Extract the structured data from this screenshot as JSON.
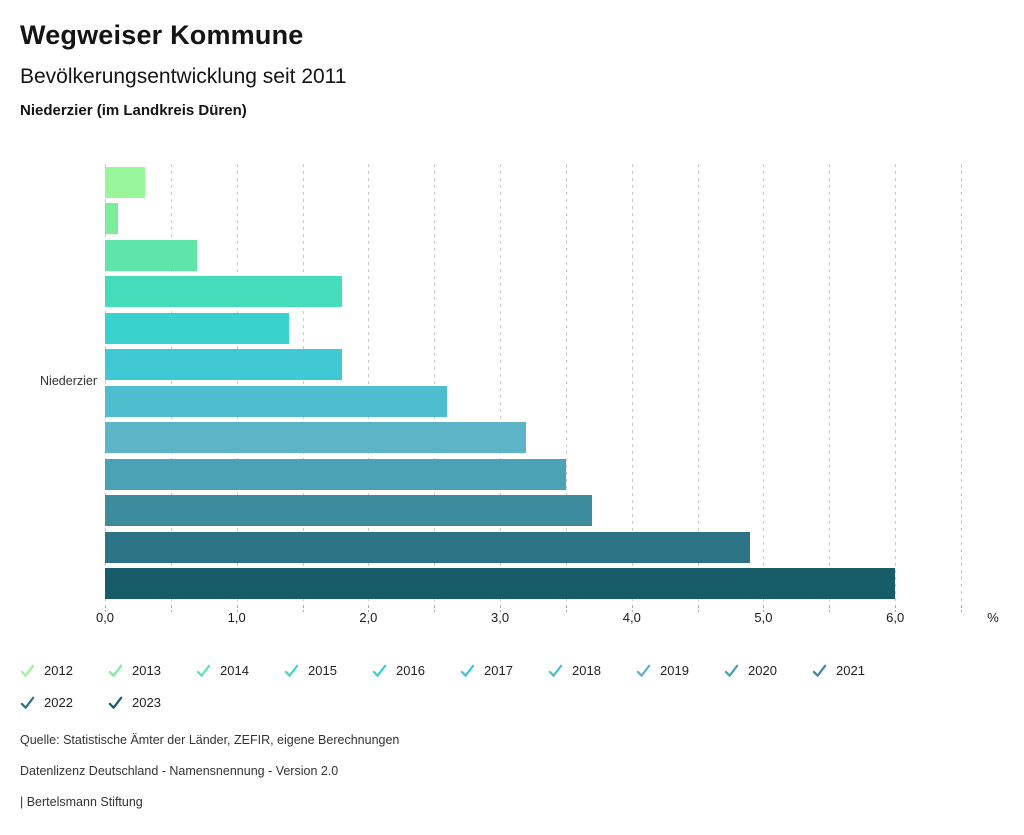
{
  "header": {
    "title": "Wegweiser Kommune",
    "subtitle": "Bevölkerungsentwicklung seit 2011",
    "location": "Niederzier (im Landkreis Düren)"
  },
  "chart_data": {
    "type": "bar",
    "orientation": "horizontal",
    "category": "Niederzier",
    "series": [
      {
        "name": "2012",
        "value": 0.3,
        "color": "#99f59a"
      },
      {
        "name": "2013",
        "value": 0.1,
        "color": "#7cec9d"
      },
      {
        "name": "2014",
        "value": 0.7,
        "color": "#5fe4a9"
      },
      {
        "name": "2015",
        "value": 1.8,
        "color": "#45dcbb"
      },
      {
        "name": "2016",
        "value": 1.4,
        "color": "#3ad2cc"
      },
      {
        "name": "2017",
        "value": 1.8,
        "color": "#40c8d5"
      },
      {
        "name": "2018",
        "value": 2.6,
        "color": "#4ebece"
      },
      {
        "name": "2019",
        "value": 3.2,
        "color": "#5db4c7"
      },
      {
        "name": "2020",
        "value": 3.5,
        "color": "#4aa2b4"
      },
      {
        "name": "2021",
        "value": 3.7,
        "color": "#3c8c9e"
      },
      {
        "name": "2022",
        "value": 4.9,
        "color": "#2b7385"
      },
      {
        "name": "2023",
        "value": 6.0,
        "color": "#185c6a"
      }
    ],
    "xlabel": "%",
    "xlim": [
      0,
      6.5
    ],
    "gridline_step": 0.5,
    "grid": true,
    "x_ticks": [
      {
        "value": 0,
        "label": "0,0"
      },
      {
        "value": 1,
        "label": "1,0"
      },
      {
        "value": 2,
        "label": "2,0"
      },
      {
        "value": 3,
        "label": "3,0"
      },
      {
        "value": 4,
        "label": "4,0"
      },
      {
        "value": 5,
        "label": "5,0"
      },
      {
        "value": 6,
        "label": "6,0"
      }
    ],
    "legend_position": "bottom"
  },
  "footer": {
    "source": "Quelle: Statistische Ämter der Länder, ZEFIR, eigene Berechnungen",
    "license": "Datenlizenz Deutschland - Namensnennung - Version 2.0",
    "attribution": "| Bertelsmann Stiftung"
  }
}
